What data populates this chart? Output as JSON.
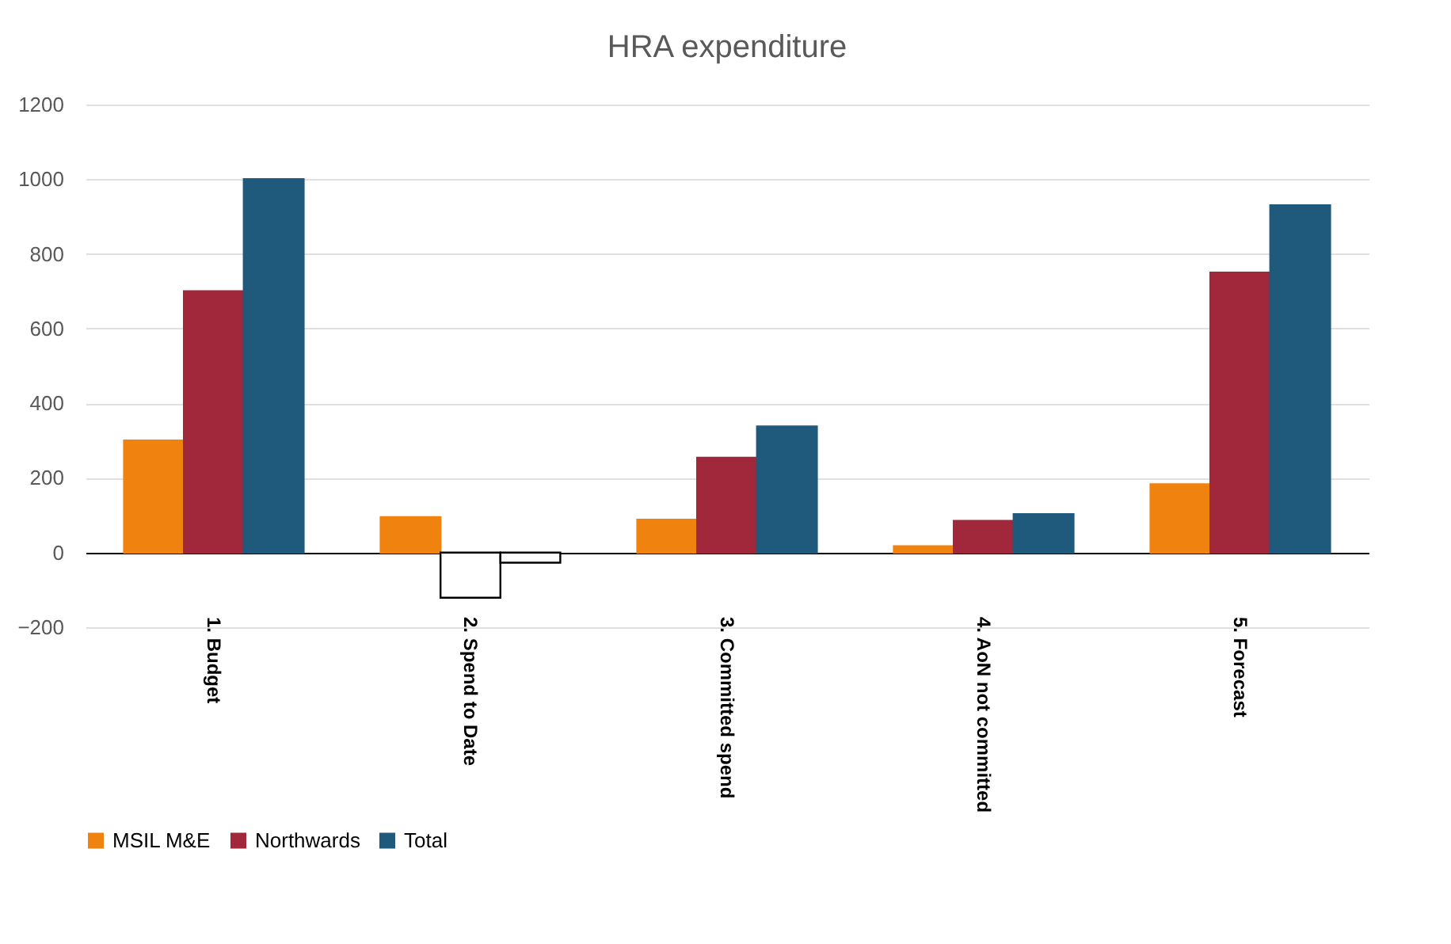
{
  "chart_data": {
    "type": "bar",
    "title": "HRA expenditure",
    "categories": [
      "1. Budget",
      "2. Spend to Date",
      "3. Committed spend",
      "4. AoN not committed",
      "5. Forecast"
    ],
    "series": [
      {
        "name": "MSIL M&E",
        "color": "#f0820f",
        "values": [
          300,
          95,
          88,
          17,
          183
        ]
      },
      {
        "name": "Northwards",
        "color": "#a0283a",
        "colors": [
          "#a0283a",
          "#ffffff",
          "#a0283a",
          "#a0283a",
          "#a0283a"
        ],
        "values": [
          700,
          -121,
          254,
          85,
          750
        ]
      },
      {
        "name": "Total",
        "color": "#1f5a7d",
        "colors": [
          "#1f5a7d",
          "#ffffff",
          "#1f5a7d",
          "#1f5a7d",
          "#1f5a7d"
        ],
        "values": [
          1000,
          -27,
          338,
          103,
          930
        ]
      }
    ],
    "ylim": [
      -200,
      1200
    ],
    "yticks": [
      -200,
      0,
      200,
      400,
      600,
      800,
      1000,
      1200
    ],
    "grid": "y",
    "legend": "bottom"
  }
}
